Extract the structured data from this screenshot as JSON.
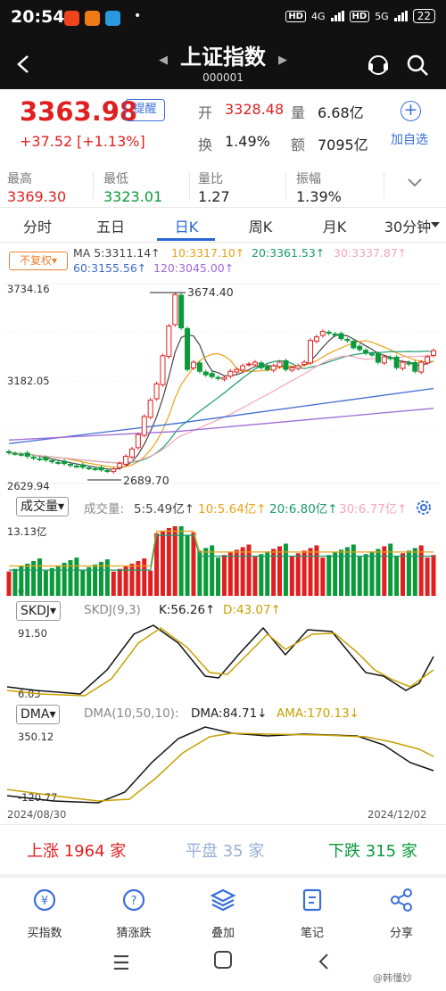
{
  "status_bar": {
    "time": "20:54",
    "right_badge1": "HD",
    "net1": "4G",
    "right_badge2": "HD",
    "net2": "5G",
    "battery": "22"
  },
  "header": {
    "title": "上证指数",
    "code": "000001"
  },
  "quote": {
    "price": "3363.98",
    "change": "+37.52",
    "change_pct": "[+1.13%]",
    "remind_label": "提醒",
    "open_label": "开",
    "open_value": "3328.48",
    "volume_label": "量",
    "volume_value": "6.68亿",
    "turnover_label": "换",
    "turnover_value": "1.49%",
    "amount_label": "额",
    "amount_value": "7095亿",
    "add_fav_label": "加自选"
  },
  "stats": [
    {
      "label": "最高",
      "value": "3369.30",
      "color": "red"
    },
    {
      "label": "最低",
      "value": "3323.01",
      "color": "green"
    },
    {
      "label": "量比",
      "value": "1.27",
      "color": "black"
    },
    {
      "label": "振幅",
      "value": "1.39%",
      "color": "black"
    }
  ],
  "tabs": [
    "分时",
    "五日",
    "日K",
    "周K",
    "月K",
    "30分钟"
  ],
  "active_tab": "日K",
  "kline": {
    "adjust_label": "不复权",
    "ma": {
      "ma5": "MA 5:3311.14↑",
      "ma10": "10:3317.10↑",
      "ma20": "20:3361.53↑",
      "ma30": "30:3337.87↑",
      "ma60": "60:3155.56↑",
      "ma120": "120:3045.00↑"
    },
    "y_top": "3734.16",
    "y_mid": "3182.05",
    "y_bottom": "2629.94",
    "high_marker": "3674.40",
    "low_marker": "2689.70",
    "colors": {
      "up": "#e02020",
      "down": "#0a9a3a",
      "ma5": "#444444",
      "ma10": "#e8a317",
      "ma20": "#1a9a6a",
      "ma30": "#f4a6b8",
      "ma60": "#3d6bd0",
      "ma120": "#a06ad8"
    }
  },
  "volume": {
    "indicator_label": "成交量",
    "title": "成交量:",
    "ma5": "5:5.49亿↑",
    "ma10": "10:5.64亿↑",
    "ma20": "20:6.80亿↑",
    "ma30": "30:6.77亿↑",
    "y_top": "13.13亿",
    "y_bottom": "0"
  },
  "skdj": {
    "indicator_label": "SKDJ",
    "title": "SKDJ(9,3)",
    "k": "K:56.26↑",
    "d": "D:43.07↑",
    "y_top": "91.50",
    "y_bottom": "6.03"
  },
  "dma": {
    "indicator_label": "DMA",
    "title": "DMA(10,50,10):",
    "dma": "DMA:84.71↓",
    "ama": "AMA:170.13↓",
    "y_top": "350.12",
    "y_bottom": "-120.77"
  },
  "date_range": {
    "start": "2024/08/30",
    "end": "2024/12/02"
  },
  "market": {
    "up_label": "上涨",
    "up_count": "1964",
    "up_unit": "家",
    "flat_label": "平盘",
    "flat_count": "35",
    "flat_unit": "家",
    "down_label": "下跌",
    "down_count": "315",
    "down_unit": "家"
  },
  "bottom_nav": [
    "买指数",
    "猜涨跌",
    "叠加",
    "笔记",
    "分享"
  ],
  "watermark": "@韩懂妙",
  "chart_data": {
    "type": "candlestick",
    "x_start": "2024/08/30",
    "x_end": "2024/12/02",
    "ylim": [
      2629.94,
      3734.16
    ],
    "high": 3674.4,
    "low": 2689.7,
    "close_approx": [
      2800,
      2795,
      2790,
      2780,
      2770,
      2765,
      2760,
      2750,
      2745,
      2740,
      2730,
      2725,
      2720,
      2715,
      2710,
      2705,
      2700,
      2710,
      2740,
      2780,
      2820,
      2900,
      3000,
      3090,
      3180,
      3336,
      3500,
      3674,
      3490,
      3260,
      3300,
      3250,
      3230,
      3220,
      3210,
      3215,
      3250,
      3260,
      3280,
      3290,
      3300,
      3270,
      3260,
      3280,
      3300,
      3260,
      3270,
      3280,
      3300,
      3420,
      3440,
      3470,
      3460,
      3450,
      3430,
      3420,
      3380,
      3370,
      3350,
      3340,
      3300,
      3330,
      3320,
      3270,
      3300,
      3290,
      3250,
      3300,
      3330,
      3364
    ]
  }
}
